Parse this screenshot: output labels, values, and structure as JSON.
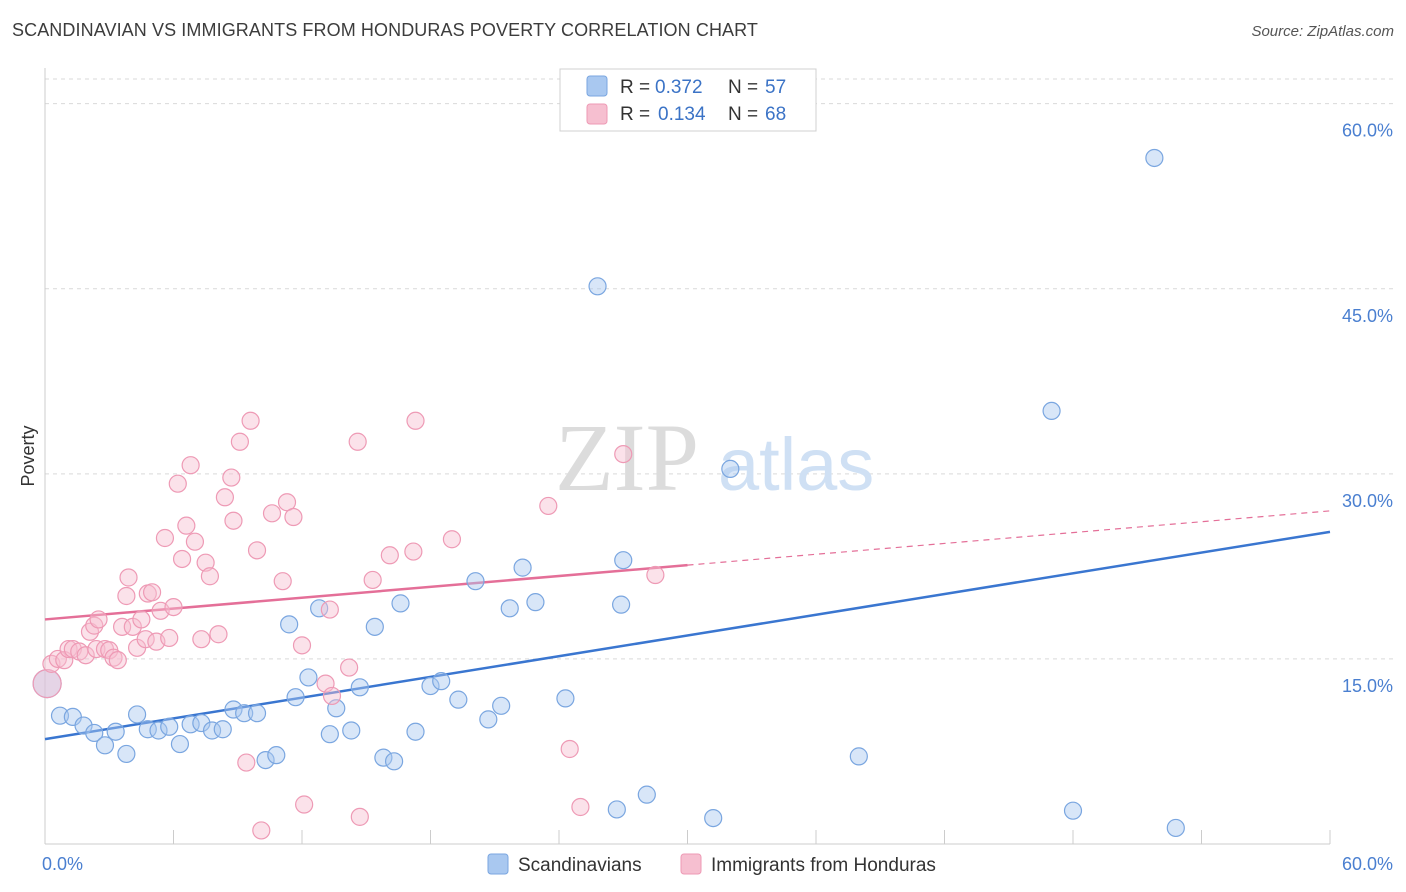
{
  "title": "SCANDINAVIAN VS IMMIGRANTS FROM HONDURAS POVERTY CORRELATION CHART",
  "source": "Source: ZipAtlas.com",
  "watermark": {
    "zip": "ZIP",
    "atlas": "atlas"
  },
  "colors": {
    "blue_fill": "#a9c8f0",
    "blue_stroke": "#7aa6e0",
    "blue_line": "#3a76d0",
    "pink_fill": "#f6bfd0",
    "pink_stroke": "#ee9ab5",
    "pink_line": "#e46f98",
    "grid": "#d9d9d9",
    "tick_text": "#4a7fd0"
  },
  "legend_top": [
    {
      "r_label": "R = ",
      "r_value": "0.372",
      "n_label": "N = ",
      "n_value": "57"
    },
    {
      "r_label": "R = ",
      "r_value": "0.134",
      "n_label": "N = ",
      "n_value": "68"
    }
  ],
  "chart_data": {
    "type": "scatter",
    "title": "SCANDINAVIAN VS IMMIGRANTS FROM HONDURAS POVERTY CORRELATION CHART",
    "xlabel": "",
    "ylabel": "Poverty",
    "xlim": [
      0,
      60
    ],
    "ylim": [
      0,
      62
    ],
    "x_tick_labels": [
      {
        "value": 0,
        "label": "0.0%"
      },
      {
        "value": 60,
        "label": "60.0%"
      }
    ],
    "y_tick_labels": [
      {
        "value": 15,
        "label": "15.0%"
      },
      {
        "value": 30,
        "label": "30.0%"
      },
      {
        "value": 45,
        "label": "45.0%"
      },
      {
        "value": 60,
        "label": "60.0%"
      }
    ],
    "grid": true,
    "legend_position": "bottom",
    "series": [
      {
        "name": "Scandinavians",
        "color_key": "blue",
        "trend": {
          "x": [
            0,
            60
          ],
          "y": [
            8.5,
            25.3
          ],
          "dashed_from": null
        },
        "points": [
          [
            0.1,
            13.0
          ],
          [
            0.7,
            10.4
          ],
          [
            1.3,
            10.3
          ],
          [
            1.8,
            9.6
          ],
          [
            2.3,
            9.0
          ],
          [
            2.8,
            8.0
          ],
          [
            3.3,
            9.1
          ],
          [
            3.8,
            7.3
          ],
          [
            4.3,
            10.5
          ],
          [
            4.8,
            9.3
          ],
          [
            5.3,
            9.2
          ],
          [
            5.8,
            9.5
          ],
          [
            6.3,
            8.1
          ],
          [
            6.8,
            9.7
          ],
          [
            7.3,
            9.8
          ],
          [
            7.8,
            9.2
          ],
          [
            8.3,
            9.3
          ],
          [
            8.8,
            10.9
          ],
          [
            9.3,
            10.6
          ],
          [
            9.9,
            10.6
          ],
          [
            10.3,
            6.8
          ],
          [
            10.8,
            7.2
          ],
          [
            11.4,
            17.8
          ],
          [
            11.7,
            11.9
          ],
          [
            12.3,
            13.5
          ],
          [
            12.8,
            19.1
          ],
          [
            13.3,
            8.9
          ],
          [
            13.6,
            11.0
          ],
          [
            14.3,
            9.2
          ],
          [
            14.7,
            12.7
          ],
          [
            15.4,
            17.6
          ],
          [
            15.8,
            7.0
          ],
          [
            16.3,
            6.7
          ],
          [
            16.6,
            19.5
          ],
          [
            17.3,
            9.1
          ],
          [
            18.0,
            12.8
          ],
          [
            18.5,
            13.2
          ],
          [
            19.3,
            11.7
          ],
          [
            20.1,
            21.3
          ],
          [
            20.7,
            10.1
          ],
          [
            21.3,
            11.2
          ],
          [
            21.7,
            19.1
          ],
          [
            22.3,
            22.4
          ],
          [
            22.9,
            19.6
          ],
          [
            24.3,
            11.8
          ],
          [
            25.8,
            45.2
          ],
          [
            26.7,
            2.8
          ],
          [
            26.9,
            19.4
          ],
          [
            27.0,
            23.0
          ],
          [
            28.1,
            4.0
          ],
          [
            31.2,
            2.1
          ],
          [
            32.0,
            30.4
          ],
          [
            38.0,
            7.1
          ],
          [
            47.0,
            35.1
          ],
          [
            48.0,
            2.7
          ],
          [
            51.8,
            55.6
          ],
          [
            52.8,
            1.3
          ]
        ]
      },
      {
        "name": "Immigrants from Honduras",
        "color_key": "pink",
        "trend": {
          "x": [
            0,
            60
          ],
          "y": [
            18.2,
            27.0
          ],
          "dashed_from": 30
        },
        "points": [
          [
            0.1,
            13.0
          ],
          [
            0.3,
            14.6
          ],
          [
            0.6,
            15.0
          ],
          [
            0.9,
            14.9
          ],
          [
            1.1,
            15.8
          ],
          [
            1.3,
            15.8
          ],
          [
            1.6,
            15.6
          ],
          [
            1.9,
            15.3
          ],
          [
            2.1,
            17.2
          ],
          [
            2.3,
            17.7
          ],
          [
            2.4,
            15.8
          ],
          [
            2.5,
            18.2
          ],
          [
            2.8,
            15.8
          ],
          [
            3.0,
            15.7
          ],
          [
            3.2,
            15.1
          ],
          [
            3.4,
            14.9
          ],
          [
            3.6,
            17.6
          ],
          [
            3.8,
            20.1
          ],
          [
            3.9,
            21.6
          ],
          [
            4.1,
            17.6
          ],
          [
            4.3,
            15.9
          ],
          [
            4.5,
            18.2
          ],
          [
            4.7,
            16.6
          ],
          [
            4.8,
            20.3
          ],
          [
            5.0,
            20.4
          ],
          [
            5.2,
            16.4
          ],
          [
            5.4,
            18.9
          ],
          [
            5.6,
            24.8
          ],
          [
            5.8,
            16.7
          ],
          [
            6.0,
            19.2
          ],
          [
            6.2,
            29.2
          ],
          [
            6.4,
            23.1
          ],
          [
            6.6,
            25.8
          ],
          [
            6.8,
            30.7
          ],
          [
            7.0,
            24.5
          ],
          [
            7.3,
            16.6
          ],
          [
            7.5,
            22.8
          ],
          [
            7.7,
            21.7
          ],
          [
            8.1,
            17.0
          ],
          [
            8.4,
            28.1
          ],
          [
            8.7,
            29.7
          ],
          [
            8.8,
            26.2
          ],
          [
            9.1,
            32.6
          ],
          [
            9.4,
            6.6
          ],
          [
            9.6,
            34.3
          ],
          [
            9.9,
            23.8
          ],
          [
            10.1,
            1.1
          ],
          [
            10.6,
            26.8
          ],
          [
            11.1,
            21.3
          ],
          [
            11.3,
            27.7
          ],
          [
            11.6,
            26.5
          ],
          [
            12.0,
            16.1
          ],
          [
            12.1,
            3.2
          ],
          [
            13.1,
            13.0
          ],
          [
            13.3,
            19.0
          ],
          [
            13.4,
            12.0
          ],
          [
            14.2,
            14.3
          ],
          [
            14.6,
            32.6
          ],
          [
            14.7,
            2.2
          ],
          [
            15.3,
            21.4
          ],
          [
            16.1,
            23.4
          ],
          [
            17.2,
            23.7
          ],
          [
            17.3,
            34.3
          ],
          [
            19.0,
            24.7
          ],
          [
            23.5,
            27.4
          ],
          [
            24.5,
            7.7
          ],
          [
            25.0,
            3.0
          ],
          [
            27.0,
            31.6
          ],
          [
            28.5,
            21.8
          ]
        ]
      }
    ]
  },
  "legend_bottom": [
    {
      "label": "Scandinavians",
      "color_key": "blue"
    },
    {
      "label": "Immigrants from Honduras",
      "color_key": "pink"
    }
  ]
}
